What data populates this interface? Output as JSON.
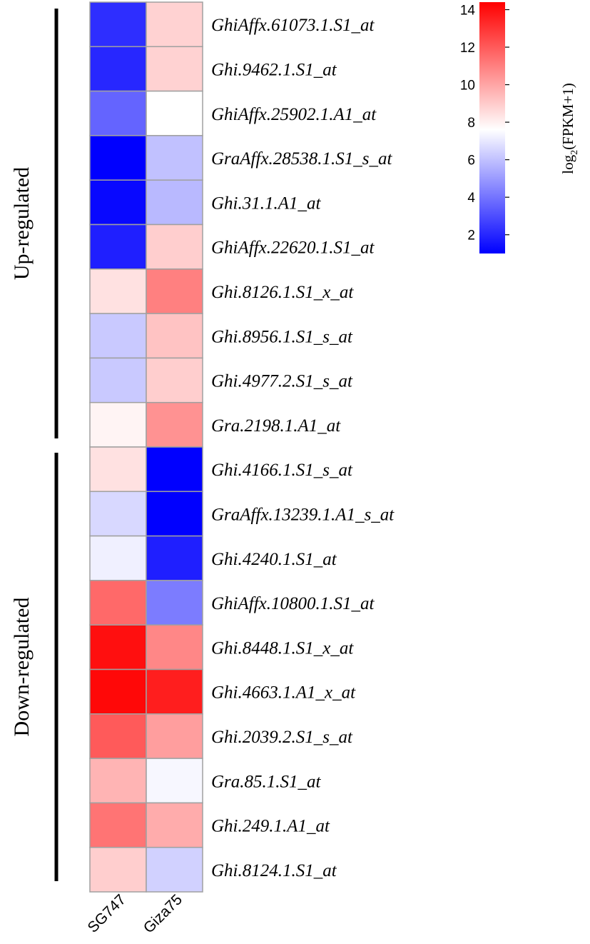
{
  "chart_data": {
    "type": "heatmap",
    "columns": [
      "SG747",
      "Giza75"
    ],
    "rows": [
      "GhiAffx.61073.1.S1_at",
      "Ghi.9462.1.S1_at",
      "GhiAffx.25902.1.A1_at",
      "GraAffx.28538.1.S1_s_at",
      "Ghi.31.1.A1_at",
      "GhiAffx.22620.1.S1_at",
      "Ghi.8126.1.S1_x_at",
      "Ghi.8956.1.S1_s_at",
      "Ghi.4977.2.S1_s_at",
      "Gra.2198.1.A1_at",
      "Ghi.4166.1.S1_s_at",
      "GraAffx.13239.1.A1_s_at",
      "Ghi.4240.1.S1_at",
      "GhiAffx.10800.1.S1_at",
      "Ghi.8448.1.S1_x_at",
      "Ghi.4663.1.A1_x_at",
      "Ghi.2039.2.S1_s_at",
      "Gra.85.1.S1_at",
      "Ghi.249.1.A1_at",
      "Ghi.8124.1.S1_at"
    ],
    "values": [
      [
        2.2,
        8.8
      ],
      [
        2.0,
        8.8
      ],
      [
        3.6,
        7.6
      ],
      [
        0.8,
        6.0
      ],
      [
        1.2,
        5.8
      ],
      [
        1.8,
        8.9
      ],
      [
        8.4,
        11.0
      ],
      [
        6.2,
        9.2
      ],
      [
        6.2,
        8.9
      ],
      [
        7.9,
        10.5
      ],
      [
        8.4,
        1.0
      ],
      [
        6.6,
        0.8
      ],
      [
        7.2,
        1.8
      ],
      [
        11.6,
        4.2
      ],
      [
        14.0,
        10.8
      ],
      [
        14.2,
        13.6
      ],
      [
        12.0,
        10.2
      ],
      [
        9.6,
        7.4
      ],
      [
        11.3,
        9.8
      ],
      [
        8.9,
        6.4
      ]
    ],
    "groups": [
      {
        "label": "Up-regulated",
        "start_row": 0,
        "end_row": 9
      },
      {
        "label": "Down-regulated",
        "start_row": 10,
        "end_row": 19
      }
    ],
    "colorbar": {
      "title_main": "log",
      "title_sub": "2",
      "title_rest": "(FPKM+1)",
      "min": 1,
      "mid": 7.6,
      "max": 14.4,
      "ticks": [
        2,
        4,
        6,
        8,
        10,
        12,
        14
      ],
      "colors": {
        "low": "#0000ff",
        "mid": "#ffffff",
        "high": "#ff0000"
      }
    }
  }
}
